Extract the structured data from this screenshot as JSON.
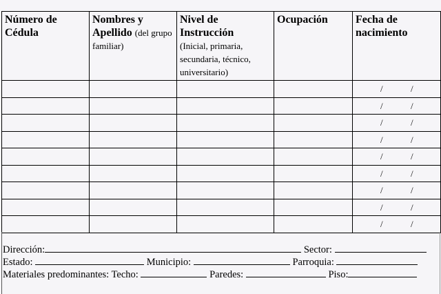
{
  "table": {
    "headers": [
      {
        "title": "Número de Cédula",
        "sub": ""
      },
      {
        "title": "Nombres y Apellido",
        "sub": "(del grupo familiar)"
      },
      {
        "title": "Nivel de Instrucción",
        "sub": "(Inicial, primaria, secundaria, técnico, universitario)"
      },
      {
        "title": "Ocupación",
        "sub": ""
      },
      {
        "title": "Fecha de nacimiento",
        "sub": ""
      }
    ],
    "row_count": 9,
    "date_separator": "/"
  },
  "footer": {
    "direccion": "Dirección:",
    "sector": "Sector:",
    "estado": "Estado:",
    "municipio": "Municipio:",
    "parroquia": "Parroquia:",
    "materiales": "Materiales predominantes: Techo:",
    "paredes": "Paredes:",
    "piso": "Piso:"
  }
}
